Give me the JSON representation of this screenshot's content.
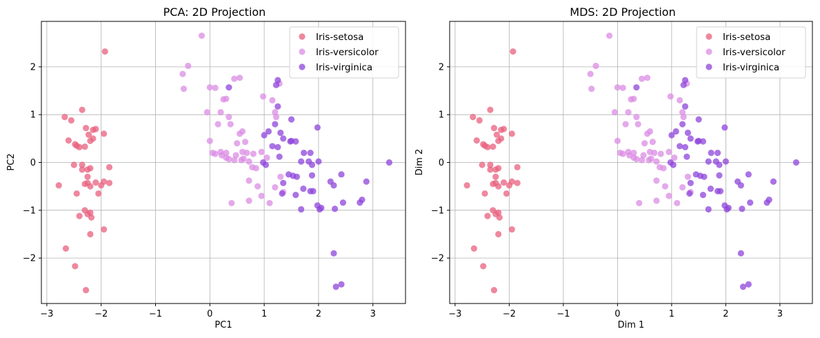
{
  "chart_data": [
    {
      "type": "scatter",
      "title": "PCA: 2D Projection",
      "xlabel": "PC1",
      "ylabel": "PC2",
      "xlim": [
        -3.1,
        3.6
      ],
      "ylim": [
        -2.95,
        2.95
      ],
      "xticks": [
        -3,
        -2,
        -1,
        0,
        1,
        2,
        3
      ],
      "yticks": [
        -2,
        -1,
        0,
        1,
        2
      ],
      "xtick_labels": [
        "−3",
        "−2",
        "−1",
        "0",
        "1",
        "2",
        "3"
      ],
      "ytick_labels": [
        "−2",
        "−1",
        "0",
        "1",
        "2"
      ],
      "grid": true,
      "legend_position": "top-right",
      "series": [
        {
          "name": "Iris-setosa",
          "color": "#e8607e",
          "x": [
            -1.93,
            -2.67,
            -2.55,
            -2.35,
            -2.1,
            -2.15,
            -1.95,
            -2.28,
            -2.23,
            -2.48,
            -2.3,
            -2.45,
            -2.4,
            -2.2,
            -2.15,
            -2.6,
            -2.35,
            -2.2,
            -2.25,
            -1.85,
            -2.35,
            -2.5,
            -2.0,
            -2.78,
            -2.25,
            -2.3,
            -2.2,
            -2.1,
            -1.95,
            -1.85,
            -2.25,
            -2.05,
            -2.3,
            -2.45,
            -2.4,
            -2.25,
            -2.2,
            -2.18,
            -1.95,
            -2.65,
            -2.2,
            -2.48,
            -2.28
          ],
          "y": [
            2.32,
            0.95,
            0.88,
            1.1,
            0.7,
            0.68,
            0.6,
            0.72,
            0.58,
            0.38,
            0.33,
            0.35,
            0.32,
            0.45,
            0.5,
            0.46,
            -0.05,
            -0.12,
            -0.15,
            -0.1,
            -0.15,
            -0.05,
            -0.48,
            -0.48,
            -0.43,
            -0.45,
            -0.5,
            -0.42,
            -0.4,
            -0.43,
            -0.3,
            -0.65,
            -1.0,
            -0.65,
            -1.12,
            -1.08,
            -1.05,
            -1.15,
            -1.4,
            -1.8,
            -1.5,
            -2.17,
            -2.67
          ]
        },
        {
          "name": "Iris-versicolor",
          "color": "#db8ce4",
          "x": [
            -0.15,
            -0.4,
            -0.5,
            -0.48,
            0.0,
            0.1,
            0.25,
            0.3,
            0.45,
            0.55,
            0.2,
            0.15,
            0.35,
            0.38,
            0.6,
            0.55,
            -0.05,
            0.0,
            0.2,
            0.3,
            0.5,
            0.65,
            0.3,
            0.48,
            0.6,
            0.68,
            0.8,
            0.95,
            0.45,
            0.62,
            0.05,
            0.1,
            0.22,
            0.35,
            0.58,
            0.72,
            0.78,
            0.85,
            1.05,
            1.22,
            1.28,
            1.2,
            1.15,
            0.98,
            0.72,
            0.88,
            1.2,
            1.35,
            0.4,
            0.72,
            0.95,
            1.1,
            1.3
          ],
          "y": [
            2.65,
            2.02,
            1.85,
            1.54,
            1.57,
            1.56,
            1.32,
            1.33,
            1.75,
            1.77,
            1.05,
            0.8,
            0.95,
            0.8,
            0.65,
            0.6,
            1.05,
            0.45,
            0.22,
            0.2,
            0.4,
            0.43,
            0.1,
            0.15,
            0.22,
            0.2,
            0.18,
            0.22,
            0.05,
            0.08,
            0.2,
            0.18,
            0.15,
            0.07,
            0.05,
            0.02,
            -0.1,
            -0.12,
            0.1,
            0.95,
            1.65,
            1.05,
            1.3,
            1.38,
            -0.38,
            -0.5,
            -0.52,
            -0.62,
            -0.85,
            -0.8,
            -0.7,
            -0.85,
            -0.3
          ]
        },
        {
          "name": "Iris-virginica",
          "color": "#8e44db",
          "x": [
            1.25,
            1.22,
            0.35,
            1.25,
            1.5,
            1.2,
            1.3,
            1.0,
            1.08,
            1.35,
            1.5,
            1.15,
            1.25,
            1.48,
            1.58,
            1.73,
            1.85,
            1.98,
            2.0,
            1.28,
            1.68,
            1.82,
            1.88,
            0.98,
            1.03,
            1.45,
            1.53,
            1.6,
            1.88,
            2.22,
            2.28,
            2.42,
            2.88,
            3.3,
            1.35,
            1.33,
            1.58,
            1.68,
            1.72,
            1.85,
            1.9,
            1.98,
            2.05,
            2.02,
            2.3,
            2.45,
            2.8,
            2.76,
            2.28,
            2.32,
            2.42
          ],
          "y": [
            1.72,
            1.62,
            1.57,
            1.17,
            0.9,
            0.8,
            0.62,
            0.57,
            0.65,
            0.5,
            0.45,
            0.34,
            0.32,
            0.44,
            0.44,
            0.2,
            0.2,
            0.73,
            0.02,
            0.12,
            0.02,
            0.02,
            -0.05,
            0.0,
            -0.05,
            -0.25,
            -0.28,
            -0.3,
            -0.27,
            -0.4,
            -0.48,
            -0.25,
            -0.4,
            0.0,
            -0.43,
            -0.65,
            -0.68,
            -0.98,
            -0.55,
            -0.6,
            -0.6,
            -0.9,
            -0.95,
            -0.98,
            -0.97,
            -0.84,
            -0.78,
            -0.84,
            -1.9,
            -2.6,
            -2.55
          ]
        }
      ]
    },
    {
      "type": "scatter",
      "title": "MDS: 2D Projection",
      "xlabel": "Dim 1",
      "ylabel": "Dim 2",
      "xlim": [
        -3.1,
        3.6
      ],
      "ylim": [
        -2.95,
        2.95
      ],
      "xticks": [
        -3,
        -2,
        -1,
        0,
        1,
        2,
        3
      ],
      "yticks": [
        -2,
        -1,
        0,
        1,
        2
      ],
      "xtick_labels": [
        "−3",
        "−2",
        "−1",
        "0",
        "1",
        "2",
        "3"
      ],
      "ytick_labels": [
        "−2",
        "−1",
        "0",
        "1",
        "2"
      ],
      "grid": true,
      "legend_position": "top-right",
      "series": [
        {
          "name": "Iris-setosa",
          "color": "#e8607e",
          "x": [
            -1.93,
            -2.67,
            -2.55,
            -2.35,
            -2.1,
            -2.15,
            -1.95,
            -2.28,
            -2.23,
            -2.48,
            -2.3,
            -2.45,
            -2.4,
            -2.2,
            -2.15,
            -2.6,
            -2.35,
            -2.2,
            -2.25,
            -1.85,
            -2.35,
            -2.5,
            -2.0,
            -2.78,
            -2.25,
            -2.3,
            -2.2,
            -2.1,
            -1.95,
            -1.85,
            -2.25,
            -2.05,
            -2.3,
            -2.45,
            -2.4,
            -2.25,
            -2.2,
            -2.18,
            -1.95,
            -2.65,
            -2.2,
            -2.48,
            -2.28
          ],
          "y": [
            2.32,
            0.95,
            0.88,
            1.1,
            0.7,
            0.68,
            0.6,
            0.72,
            0.58,
            0.38,
            0.33,
            0.35,
            0.32,
            0.45,
            0.5,
            0.46,
            -0.05,
            -0.12,
            -0.15,
            -0.1,
            -0.15,
            -0.05,
            -0.48,
            -0.48,
            -0.43,
            -0.45,
            -0.5,
            -0.42,
            -0.4,
            -0.43,
            -0.3,
            -0.65,
            -1.0,
            -0.65,
            -1.12,
            -1.08,
            -1.05,
            -1.15,
            -1.4,
            -1.8,
            -1.5,
            -2.17,
            -2.67
          ]
        },
        {
          "name": "Iris-versicolor",
          "color": "#db8ce4",
          "x": [
            -0.15,
            -0.4,
            -0.5,
            -0.48,
            0.0,
            0.1,
            0.25,
            0.3,
            0.45,
            0.55,
            0.2,
            0.15,
            0.35,
            0.38,
            0.6,
            0.55,
            -0.05,
            0.0,
            0.2,
            0.3,
            0.5,
            0.65,
            0.3,
            0.48,
            0.6,
            0.68,
            0.8,
            0.95,
            0.45,
            0.62,
            0.05,
            0.1,
            0.22,
            0.35,
            0.58,
            0.72,
            0.78,
            0.85,
            1.05,
            1.22,
            1.28,
            1.2,
            1.15,
            0.98,
            0.72,
            0.88,
            1.2,
            1.35,
            0.4,
            0.72,
            0.95,
            1.1,
            1.3
          ],
          "y": [
            2.65,
            2.02,
            1.85,
            1.54,
            1.57,
            1.56,
            1.32,
            1.33,
            1.75,
            1.77,
            1.05,
            0.8,
            0.95,
            0.8,
            0.65,
            0.6,
            1.05,
            0.45,
            0.22,
            0.2,
            0.4,
            0.43,
            0.1,
            0.15,
            0.22,
            0.2,
            0.18,
            0.22,
            0.05,
            0.08,
            0.2,
            0.18,
            0.15,
            0.07,
            0.05,
            0.02,
            -0.1,
            -0.12,
            0.1,
            0.95,
            1.65,
            1.05,
            1.3,
            1.38,
            -0.38,
            -0.5,
            -0.52,
            -0.62,
            -0.85,
            -0.8,
            -0.7,
            -0.85,
            -0.3
          ]
        },
        {
          "name": "Iris-virginica",
          "color": "#8e44db",
          "x": [
            1.25,
            1.22,
            0.35,
            1.25,
            1.5,
            1.2,
            1.3,
            1.0,
            1.08,
            1.35,
            1.5,
            1.15,
            1.25,
            1.48,
            1.58,
            1.73,
            1.85,
            1.98,
            2.0,
            1.28,
            1.68,
            1.82,
            1.88,
            0.98,
            1.03,
            1.45,
            1.53,
            1.6,
            1.88,
            2.22,
            2.28,
            2.42,
            2.88,
            3.3,
            1.35,
            1.33,
            1.58,
            1.68,
            1.72,
            1.85,
            1.9,
            1.98,
            2.05,
            2.02,
            2.3,
            2.45,
            2.8,
            2.76,
            2.28,
            2.32,
            2.42
          ],
          "y": [
            1.72,
            1.62,
            1.57,
            1.17,
            0.9,
            0.8,
            0.62,
            0.57,
            0.65,
            0.5,
            0.45,
            0.34,
            0.32,
            0.44,
            0.44,
            0.2,
            0.2,
            0.73,
            0.02,
            0.12,
            0.02,
            0.02,
            -0.05,
            0.0,
            -0.05,
            -0.25,
            -0.28,
            -0.3,
            -0.27,
            -0.4,
            -0.48,
            -0.25,
            -0.4,
            0.0,
            -0.43,
            -0.65,
            -0.68,
            -0.98,
            -0.55,
            -0.6,
            -0.6,
            -0.9,
            -0.95,
            -0.98,
            -0.97,
            -0.84,
            -0.78,
            -0.84,
            -1.9,
            -2.6,
            -2.55
          ]
        }
      ]
    }
  ]
}
